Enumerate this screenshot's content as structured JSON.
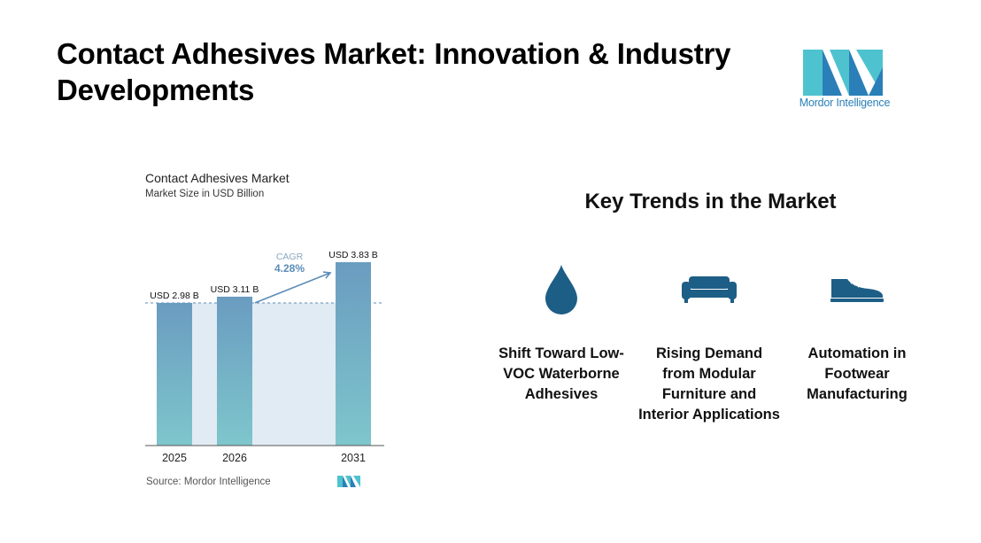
{
  "header": {
    "title": "Contact Adhesives Market: Innovation & Industry Developments"
  },
  "brand": {
    "logo_text": "Mordor Intelligence",
    "colors": {
      "teal": "#4ec3cf",
      "blue": "#2a7fb8"
    }
  },
  "chart_data": {
    "type": "bar",
    "title": "Contact Adhesives Market",
    "subtitle": "Market Size in USD Billion",
    "categories": [
      "2025",
      "2026",
      "2031"
    ],
    "values": [
      2.98,
      3.11,
      3.83
    ],
    "value_labels": [
      "USD 2.98 B",
      "USD 3.11 B",
      "USD 3.83 B"
    ],
    "unit": "USD Billion",
    "ylim": [
      0,
      3.83
    ],
    "grid": false,
    "annotation": {
      "label": "CAGR",
      "value": "4.28%"
    },
    "source": "Source:  Mordor Intelligence",
    "colors": {
      "bar_top": "#6a9cc0",
      "bar_bottom": "#7ec6cc",
      "band": "#e1ebf3",
      "accent": "#5b8db8"
    }
  },
  "trends": {
    "heading": "Key Trends in the Market",
    "icon_color": "#1d5e86",
    "items": [
      {
        "icon": "water-drop-icon",
        "label": "Shift Toward Low-VOC Waterborne Adhesives"
      },
      {
        "icon": "sofa-icon",
        "label": "Rising Demand from Modular Furniture and Interior Applications"
      },
      {
        "icon": "shoe-icon",
        "label": "Automation in Footwear Manufacturing"
      }
    ]
  }
}
